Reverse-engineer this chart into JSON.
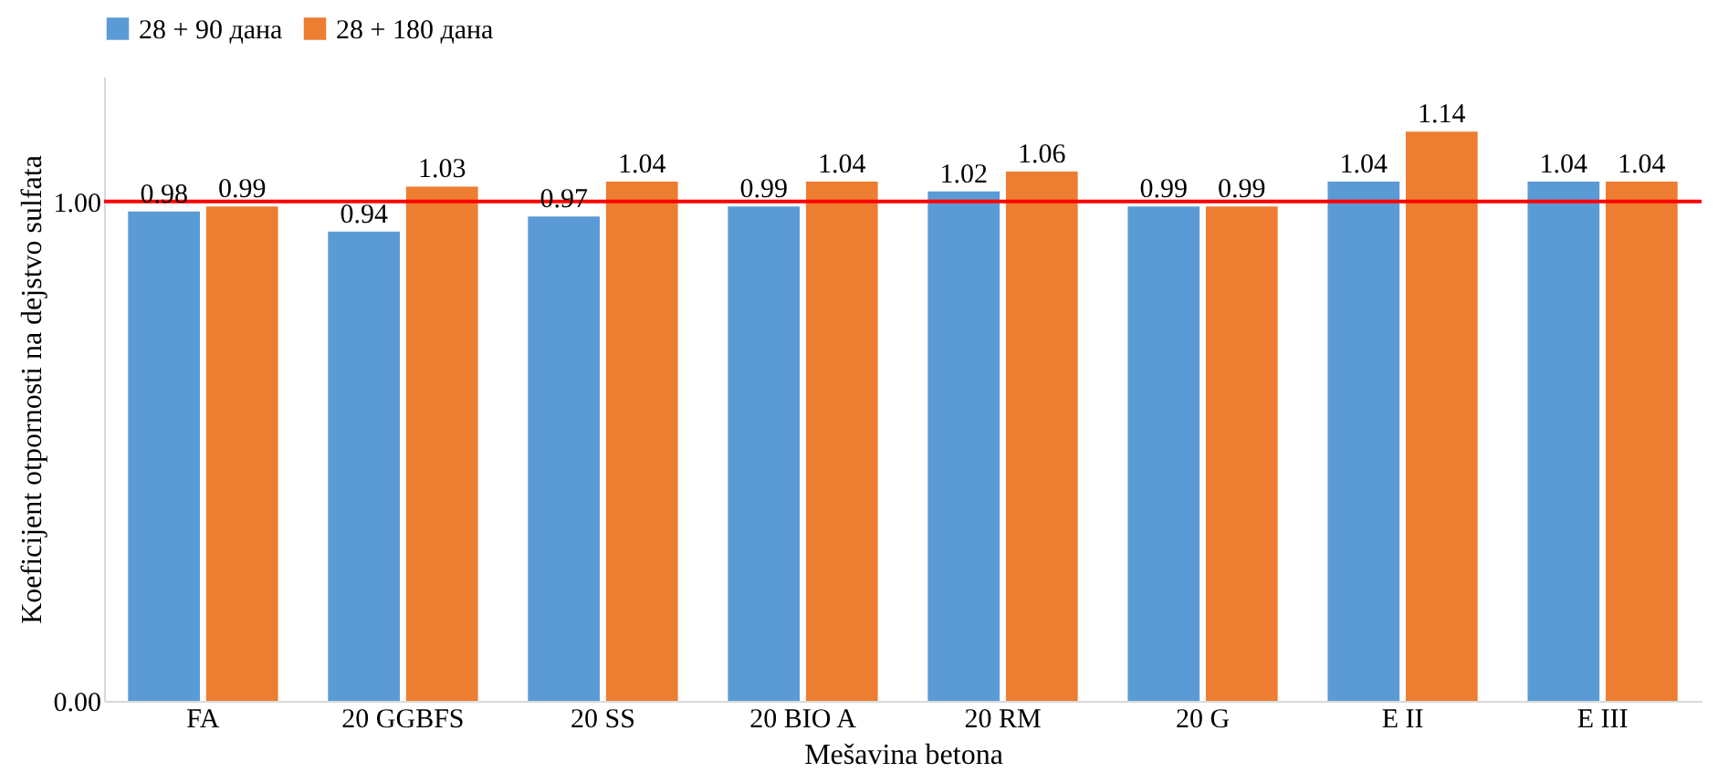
{
  "chart_data": {
    "type": "bar",
    "xlabel": "Mešavina betona",
    "ylabel": "Koeficijent otpornosti na dejstvo sulfata",
    "categories": [
      "FA",
      "20 GGBFS",
      "20 SS",
      "20 BIO A",
      "20 RM",
      "20 G",
      "E II",
      "E III"
    ],
    "series": [
      {
        "name": "28 + 90 дана",
        "color": "#5b9bd5",
        "values": [
          0.98,
          0.94,
          0.97,
          0.99,
          1.02,
          0.99,
          1.04,
          1.04
        ]
      },
      {
        "name": "28 + 180  дана",
        "color": "#ed7d31",
        "values": [
          0.99,
          1.03,
          1.04,
          1.04,
          1.06,
          0.99,
          1.14,
          1.04
        ]
      }
    ],
    "ylim": [
      0,
      1.25
    ],
    "yticks": [
      {
        "value": 0,
        "label": "0.00"
      },
      {
        "value": 1,
        "label": "1.00"
      }
    ],
    "ref_lines": [
      {
        "axis": "y",
        "value": 1,
        "color": "#ff0000"
      }
    ],
    "data_labels": true,
    "grid": false,
    "legend": "top"
  }
}
